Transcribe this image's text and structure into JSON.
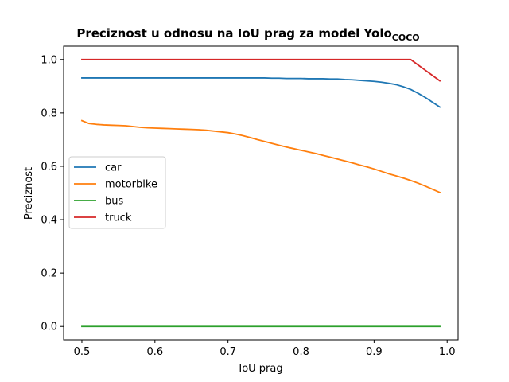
{
  "chart_data": {
    "type": "line",
    "title": "Preciznost u odnosu na IoU prag za model Yolo",
    "title_subscript": "COCO",
    "xlabel": "IoU prag",
    "ylabel": "Preciznost",
    "xlim": [
      0.475,
      1.015
    ],
    "ylim": [
      -0.05,
      1.05
    ],
    "xticks": [
      0.5,
      0.6,
      0.7,
      0.8,
      0.9,
      1.0
    ],
    "xtick_labels": [
      "0.5",
      "0.6",
      "0.7",
      "0.8",
      "0.9",
      "1.0"
    ],
    "yticks": [
      0.0,
      0.2,
      0.4,
      0.6,
      0.8,
      1.0
    ],
    "ytick_labels": [
      "0.0",
      "0.2",
      "0.4",
      "0.6",
      "0.8",
      "1.0"
    ],
    "grid": false,
    "legend_position": "center-left",
    "x": [
      0.5,
      0.51,
      0.52,
      0.53,
      0.54,
      0.55,
      0.56,
      0.57,
      0.58,
      0.59,
      0.6,
      0.61,
      0.62,
      0.63,
      0.64,
      0.65,
      0.66,
      0.67,
      0.68,
      0.69,
      0.7,
      0.71,
      0.72,
      0.73,
      0.74,
      0.75,
      0.76,
      0.77,
      0.78,
      0.79,
      0.8,
      0.81,
      0.82,
      0.83,
      0.84,
      0.85,
      0.86,
      0.87,
      0.88,
      0.89,
      0.9,
      0.91,
      0.92,
      0.93,
      0.94,
      0.95,
      0.96,
      0.97,
      0.98,
      0.99
    ],
    "series": [
      {
        "name": "car",
        "color": "#1f77b4",
        "values": [
          0.931,
          0.931,
          0.931,
          0.931,
          0.931,
          0.931,
          0.931,
          0.931,
          0.931,
          0.931,
          0.931,
          0.931,
          0.931,
          0.931,
          0.931,
          0.931,
          0.931,
          0.931,
          0.931,
          0.931,
          0.931,
          0.931,
          0.931,
          0.931,
          0.931,
          0.931,
          0.93,
          0.93,
          0.929,
          0.929,
          0.929,
          0.928,
          0.928,
          0.928,
          0.927,
          0.927,
          0.925,
          0.924,
          0.922,
          0.92,
          0.918,
          0.915,
          0.911,
          0.906,
          0.898,
          0.888,
          0.874,
          0.858,
          0.84,
          0.822
        ]
      },
      {
        "name": "motorbike",
        "color": "#ff7f0e",
        "values": [
          0.771,
          0.76,
          0.757,
          0.755,
          0.754,
          0.753,
          0.752,
          0.749,
          0.746,
          0.744,
          0.743,
          0.742,
          0.741,
          0.74,
          0.739,
          0.738,
          0.737,
          0.735,
          0.732,
          0.729,
          0.726,
          0.721,
          0.715,
          0.708,
          0.7,
          0.693,
          0.686,
          0.679,
          0.672,
          0.666,
          0.66,
          0.654,
          0.648,
          0.641,
          0.634,
          0.627,
          0.62,
          0.613,
          0.605,
          0.598,
          0.59,
          0.581,
          0.572,
          0.564,
          0.556,
          0.547,
          0.537,
          0.526,
          0.514,
          0.502
        ]
      },
      {
        "name": "bus",
        "color": "#2ca02c",
        "values": [
          0.0,
          0.0,
          0.0,
          0.0,
          0.0,
          0.0,
          0.0,
          0.0,
          0.0,
          0.0,
          0.0,
          0.0,
          0.0,
          0.0,
          0.0,
          0.0,
          0.0,
          0.0,
          0.0,
          0.0,
          0.0,
          0.0,
          0.0,
          0.0,
          0.0,
          0.0,
          0.0,
          0.0,
          0.0,
          0.0,
          0.0,
          0.0,
          0.0,
          0.0,
          0.0,
          0.0,
          0.0,
          0.0,
          0.0,
          0.0,
          0.0,
          0.0,
          0.0,
          0.0,
          0.0,
          0.0,
          0.0,
          0.0,
          0.0,
          0.0
        ]
      },
      {
        "name": "truck",
        "color": "#d62728",
        "values": [
          1.0,
          1.0,
          1.0,
          1.0,
          1.0,
          1.0,
          1.0,
          1.0,
          1.0,
          1.0,
          1.0,
          1.0,
          1.0,
          1.0,
          1.0,
          1.0,
          1.0,
          1.0,
          1.0,
          1.0,
          1.0,
          1.0,
          1.0,
          1.0,
          1.0,
          1.0,
          1.0,
          1.0,
          1.0,
          1.0,
          1.0,
          1.0,
          1.0,
          1.0,
          1.0,
          1.0,
          1.0,
          1.0,
          1.0,
          1.0,
          1.0,
          1.0,
          1.0,
          1.0,
          1.0,
          1.0,
          0.98,
          0.96,
          0.94,
          0.92
        ]
      }
    ]
  }
}
